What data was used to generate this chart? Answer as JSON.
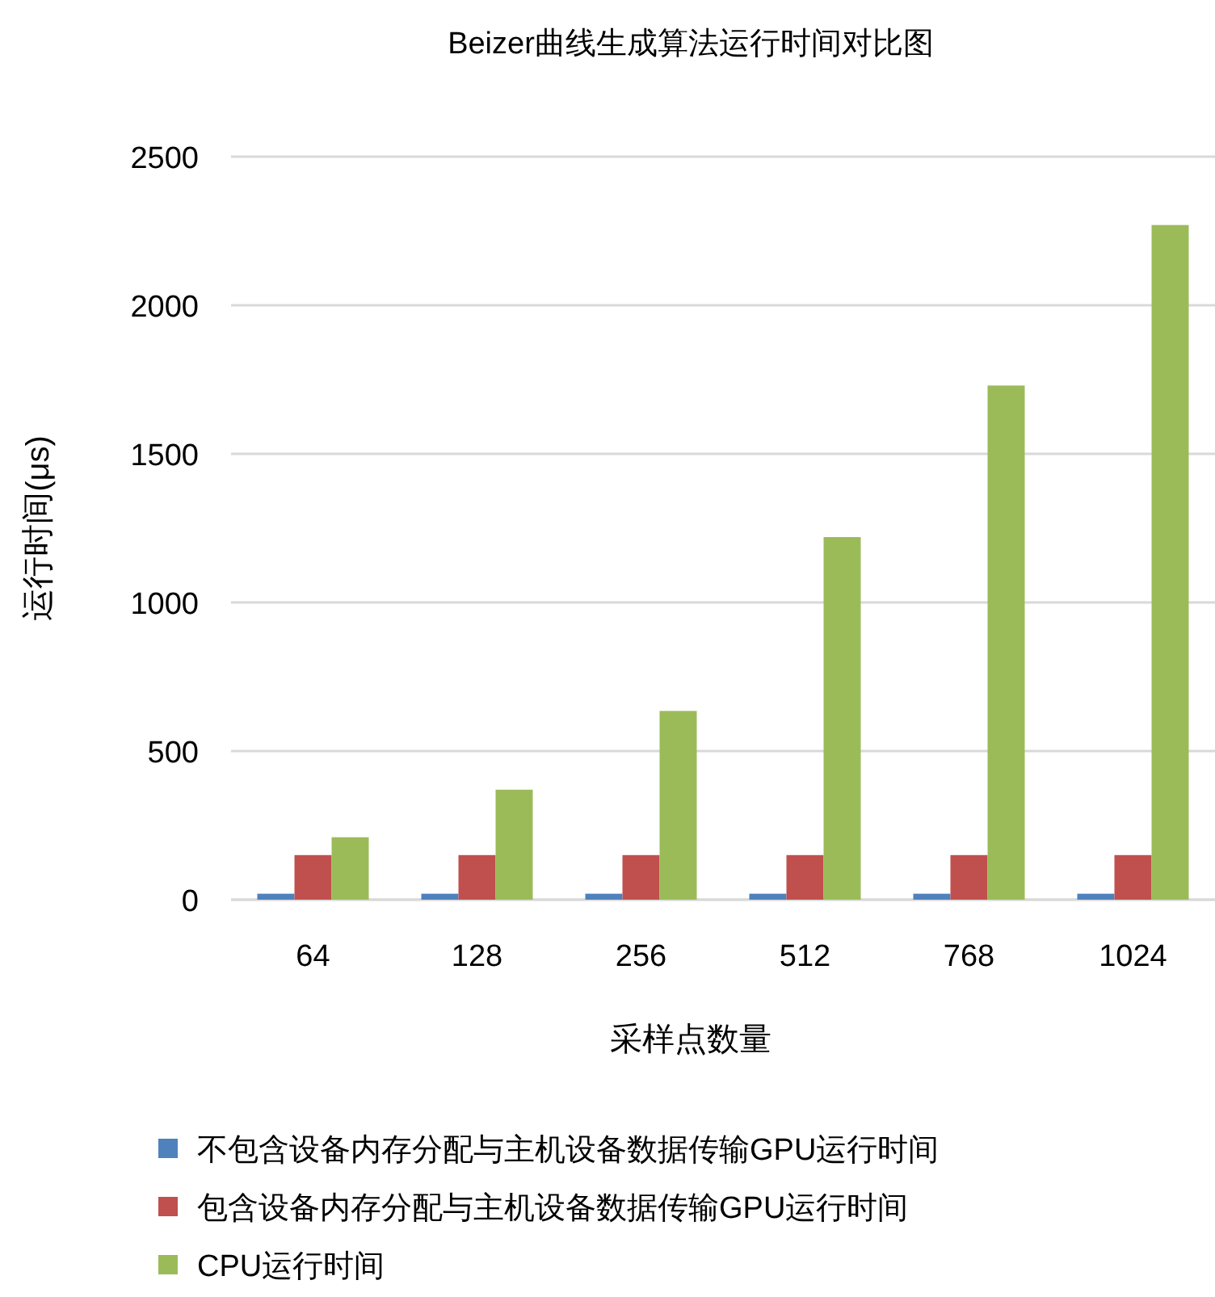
{
  "chart_data": {
    "type": "bar",
    "title": "Beizer曲线生成算法运行时间对比图",
    "xlabel": "采样点数量",
    "ylabel": "运行时间(μs)",
    "categories": [
      "64",
      "128",
      "256",
      "512",
      "768",
      "1024"
    ],
    "series": [
      {
        "name": "不包含设备内存分配与主机设备数据传输GPU运行时间",
        "color": "#4f81bd",
        "values": [
          20,
          20,
          20,
          20,
          20,
          20
        ]
      },
      {
        "name": "包含设备内存分配与主机设备数据传输GPU运行时间",
        "color": "#c0504d",
        "values": [
          150,
          150,
          150,
          150,
          150,
          150
        ]
      },
      {
        "name": "CPU运行时间",
        "color": "#9bbb59",
        "values": [
          210,
          370,
          635,
          1220,
          1730,
          2270
        ]
      }
    ],
    "ylim": [
      0,
      2500
    ],
    "yticks": [
      0,
      500,
      1000,
      1500,
      2000,
      2500
    ],
    "grid": "y",
    "legend": "bottom"
  }
}
